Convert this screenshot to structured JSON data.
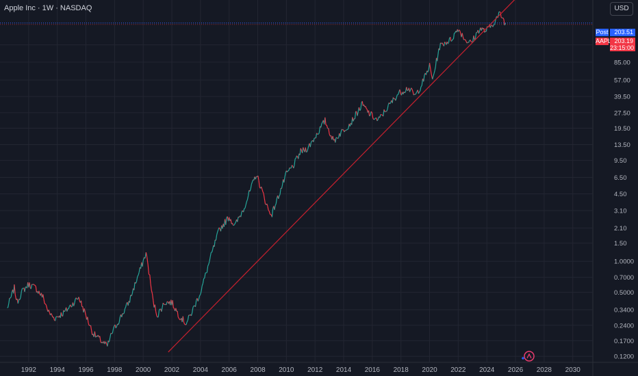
{
  "header": {
    "title": "Apple Inc · 1W · NASDAQ",
    "currency_button": "USD"
  },
  "price_tags": {
    "post_label": "Post",
    "post_value": "203.51",
    "symbol_label": "AAPL",
    "last_value": "203.19",
    "countdown": "23:15:00"
  },
  "colors": {
    "background": "#151924",
    "grid": "#232632",
    "up": "#26a69a",
    "down": "#f23645",
    "trendline": "#c2202e",
    "axis_text": "#b2b5be",
    "post_tag": "#2962ff",
    "last_tag": "#f23645"
  },
  "watermark_icon": "tradingview-logo-icon",
  "chart_data": {
    "type": "line",
    "scale": "log",
    "series": [
      {
        "x": [
          1990.5,
          1991.0,
          1991.2,
          1991.5,
          1992.0,
          1992.5,
          1993.0,
          1993.4,
          1993.8,
          1994.5,
          1995.5,
          1996.0,
          1996.5,
          1997.5,
          1997.8,
          1998.5,
          1999.0,
          1999.6,
          2000.0,
          2000.2,
          2000.4,
          2000.7,
          2001.0,
          2001.5,
          2002.0,
          2002.5,
          2003.0,
          2003.3,
          2004.0,
          2004.8,
          2005.3,
          2006.0,
          2006.4,
          2007.0,
          2007.9,
          2008.3,
          2008.8,
          2009.0,
          2009.5,
          2010.0,
          2010.5,
          2011.0,
          2011.5,
          2012.0,
          2012.7,
          2013.3,
          2013.7,
          2014.5,
          2015.3,
          2015.8,
          2016.4,
          2017.0,
          2017.8,
          2018.5,
          2019.0,
          2019.4,
          2020.0,
          2020.2,
          2020.7,
          2021.0,
          2021.5,
          2022.0,
          2022.5,
          2022.9,
          2023.5,
          2023.9,
          2024.3,
          2024.9,
          2025.0,
          2025.3
        ],
        "y": [
          0.35,
          0.55,
          0.4,
          0.5,
          0.6,
          0.55,
          0.45,
          0.32,
          0.28,
          0.32,
          0.45,
          0.3,
          0.2,
          0.15,
          0.2,
          0.3,
          0.4,
          0.7,
          1.0,
          1.2,
          0.8,
          0.4,
          0.3,
          0.4,
          0.4,
          0.3,
          0.25,
          0.3,
          0.5,
          1.2,
          2.0,
          2.7,
          2.2,
          3.2,
          7.0,
          4.8,
          3.0,
          2.9,
          4.5,
          7.0,
          8.5,
          11.5,
          12.5,
          16,
          23,
          14.5,
          17,
          22,
          33,
          27,
          23,
          30,
          42,
          48,
          40,
          50,
          78,
          57,
          120,
          130,
          140,
          180,
          140,
          130,
          180,
          170,
          190,
          250,
          240,
          203.19
        ]
      }
    ],
    "trendline": {
      "x": [
        2001.75,
        2026.3
      ],
      "y": [
        0.132,
        385
      ]
    },
    "post_price": 203.51,
    "last_price": 203.19,
    "xlim": [
      1990.0,
      2031.4
    ],
    "ylim": [
      0.105,
      340
    ],
    "x_ticks": [
      "1992",
      "1994",
      "1996",
      "1998",
      "2000",
      "2002",
      "2004",
      "2006",
      "2008",
      "2010",
      "2012",
      "2014",
      "2016",
      "2018",
      "2020",
      "2022",
      "2024",
      "2026",
      "2028",
      "2030"
    ],
    "y_ticks": [
      "125.00",
      "85.00",
      "57.00",
      "39.50",
      "27.50",
      "19.50",
      "13.50",
      "9.50",
      "6.50",
      "4.50",
      "3.10",
      "2.10",
      "1.50",
      "1.0000",
      "0.7000",
      "0.5000",
      "0.3400",
      "0.2400",
      "0.1700",
      "0.1200"
    ],
    "grid": true,
    "legend": "none"
  }
}
